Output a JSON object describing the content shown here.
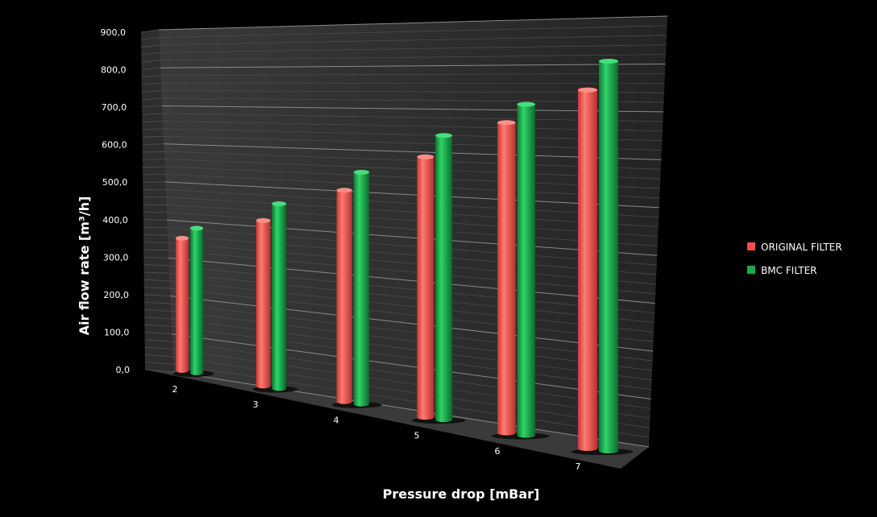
{
  "chart_data": {
    "type": "bar",
    "style": "3d-cylinder",
    "xlabel": "Pressure drop [mBar]",
    "ylabel": "Air flow rate [m³/h]",
    "categories": [
      "2",
      "3",
      "4",
      "5",
      "6",
      "7"
    ],
    "series": [
      {
        "name": "ORIGINAL FILTER",
        "color": "#f0504a",
        "values": [
          350,
          420,
          515,
          610,
          700,
          780
        ]
      },
      {
        "name": "BMC FILTER",
        "color": "#1fa84a",
        "values": [
          380,
          465,
          560,
          660,
          740,
          840
        ]
      }
    ],
    "ylim": [
      0,
      900
    ],
    "yticks": [
      "0,0",
      "100,0",
      "200,0",
      "300,0",
      "400,0",
      "500,0",
      "600,0",
      "700,0",
      "800,0",
      "900,0"
    ],
    "grid": true,
    "legend": "right",
    "background": "#000000"
  }
}
